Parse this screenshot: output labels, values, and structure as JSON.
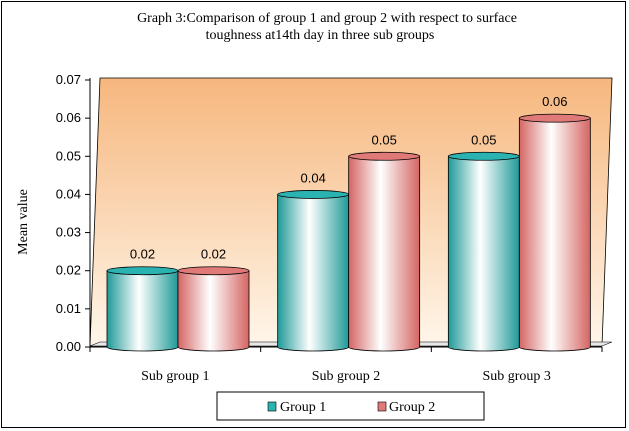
{
  "chart_data": {
    "type": "bar",
    "title_lines": [
      "Graph 3:Comparison  of  group 1 and group 2 with respect to surface",
      "toughness at14th   day in three sub groups"
    ],
    "xlabel": "",
    "ylabel": "Mean value",
    "categories": [
      "Sub group 1",
      "Sub group 2",
      "Sub group 3"
    ],
    "series": [
      {
        "name": "Group 1",
        "values": [
          0.02,
          0.04,
          0.05
        ],
        "labels": [
          "0.02",
          "0.04",
          "0.05"
        ],
        "color": "#2bb3b1"
      },
      {
        "name": "Group 2",
        "values": [
          0.02,
          0.05,
          0.06
        ],
        "labels": [
          "0.02",
          "0.05",
          "0.06"
        ],
        "color": "#e07a78"
      }
    ],
    "ylim": [
      0,
      0.07
    ],
    "yticks": [
      "0.00",
      "0.01",
      "0.02",
      "0.03",
      "0.04",
      "0.05",
      "0.06",
      "0.07"
    ],
    "ytick_values": [
      0,
      0.01,
      0.02,
      0.03,
      0.04,
      0.05,
      0.06,
      0.07
    ],
    "grid": false,
    "legend_position": "bottom-center",
    "background_gradient": [
      "#f6b77e",
      "#fff6ea"
    ]
  }
}
